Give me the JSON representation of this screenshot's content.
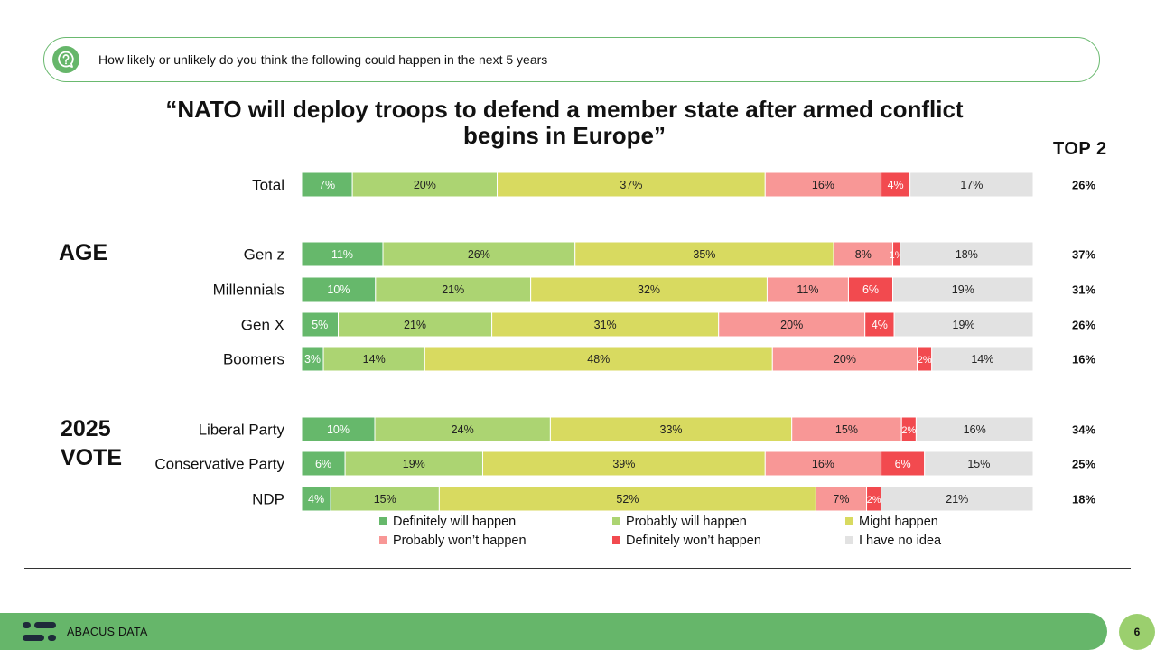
{
  "question": "How likely or unlikely do you think the following could happen in the next 5 years",
  "title_line1": "“NATO will deploy troops to defend a member state after armed conflict",
  "title_line2": "begins in Europe”",
  "top2_header": "TOP 2",
  "groups": {
    "age": "AGE",
    "vote_line1": "2025",
    "vote_line2": "VOTE"
  },
  "footer": {
    "brand": "ABACUS DATA",
    "page": "6"
  },
  "colors": {
    "definitely_will": "#66b86b",
    "probably_will": "#acd472",
    "might": "#d8da60",
    "probably_wont": "#f89796",
    "definitely_wont": "#f24a4f",
    "no_idea": "#e2e2e2",
    "accent": "#66b66a"
  },
  "chart_data": {
    "type": "bar",
    "orientation": "horizontal",
    "stacked": true,
    "title": "“NATO will deploy troops to defend a member state after armed conflict begins in Europe”",
    "xlim": [
      0,
      100
    ],
    "series": [
      {
        "name": "Definitely will happen",
        "color": "#66b86b"
      },
      {
        "name": "Probably will happen",
        "color": "#acd472"
      },
      {
        "name": "Might happen",
        "color": "#d8da60"
      },
      {
        "name": "Probably won’t happen",
        "color": "#f89796"
      },
      {
        "name": "Definitely won’t happen",
        "color": "#f24a4f"
      },
      {
        "name": "I have no idea",
        "color": "#e2e2e2"
      }
    ],
    "rows": [
      {
        "label": "Total",
        "values": [
          7,
          20,
          37,
          16,
          4,
          17
        ],
        "top2": "26%"
      },
      {
        "label": "Gen z",
        "values": [
          11,
          26,
          35,
          8,
          1,
          18
        ],
        "top2": "37%"
      },
      {
        "label": "Millennials",
        "values": [
          10,
          21,
          32,
          11,
          6,
          19
        ],
        "top2": "31%"
      },
      {
        "label": "Gen X",
        "values": [
          5,
          21,
          31,
          20,
          4,
          19
        ],
        "top2": "26%"
      },
      {
        "label": "Boomers",
        "values": [
          3,
          14,
          48,
          20,
          2,
          14
        ],
        "top2": "16%"
      },
      {
        "label": "Liberal Party",
        "values": [
          10,
          24,
          33,
          15,
          2,
          16
        ],
        "top2": "34%"
      },
      {
        "label": "Conservative Party",
        "values": [
          6,
          19,
          39,
          16,
          6,
          15
        ],
        "top2": "25%"
      },
      {
        "label": "NDP",
        "values": [
          4,
          15,
          52,
          7,
          2,
          21
        ],
        "top2": "18%"
      }
    ]
  }
}
